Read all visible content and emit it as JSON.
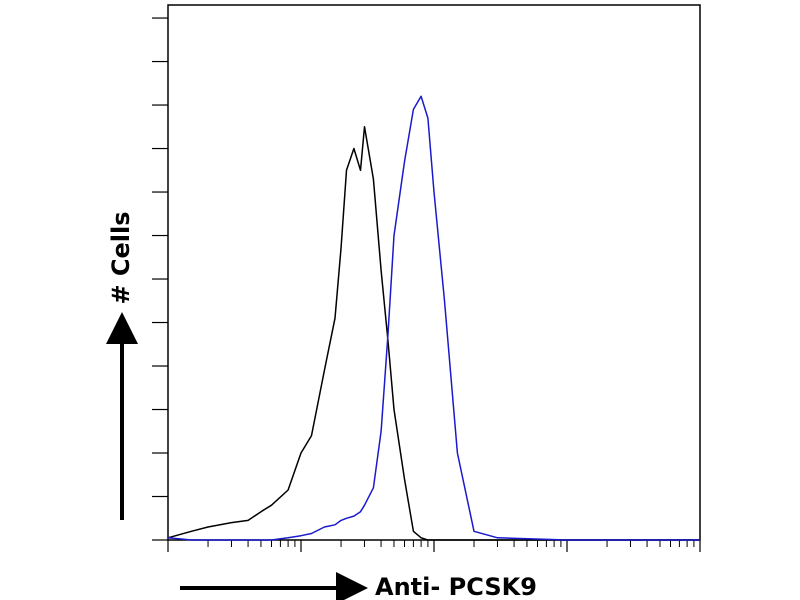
{
  "chart_data": {
    "type": "line",
    "x_label": "Anti- PCSK9",
    "y_label": "# Cells",
    "x": [
      1,
      1.5,
      2,
      3,
      4,
      5,
      6,
      8,
      10,
      12,
      15,
      18,
      20,
      22,
      25,
      28,
      30,
      35,
      40,
      45,
      50,
      60,
      70,
      80,
      90,
      100,
      120,
      150,
      200,
      300,
      1000,
      10000
    ],
    "series": [
      {
        "color": "#000000",
        "values": [
          0.05,
          0.2,
          0.3,
          0.4,
          0.45,
          0.65,
          0.8,
          1.15,
          2.0,
          2.4,
          3.9,
          5.1,
          6.7,
          8.5,
          9.0,
          8.5,
          9.5,
          8.3,
          6.2,
          4.6,
          3.0,
          1.4,
          0.2,
          0.05,
          0,
          0,
          0,
          0,
          0,
          0,
          0,
          0
        ]
      },
      {
        "color": "#1a1acc",
        "values": [
          0.05,
          0,
          0,
          0,
          0,
          0,
          0,
          0.05,
          0.1,
          0.15,
          0.3,
          0.35,
          0.45,
          0.5,
          0.55,
          0.65,
          0.8,
          1.2,
          2.5,
          4.7,
          7.0,
          8.7,
          9.9,
          10.2,
          9.7,
          8.0,
          5.5,
          2.0,
          0.2,
          0.05,
          0,
          0
        ]
      }
    ],
    "log_x": true,
    "xlim": [
      1,
      10000
    ],
    "xticks": [
      1,
      10,
      100,
      1000,
      10000
    ],
    "ylim": [
      0,
      12.3
    ],
    "yticks": [
      0,
      1,
      2,
      3,
      4,
      5,
      6,
      7,
      8,
      9,
      10,
      11,
      12
    ]
  }
}
